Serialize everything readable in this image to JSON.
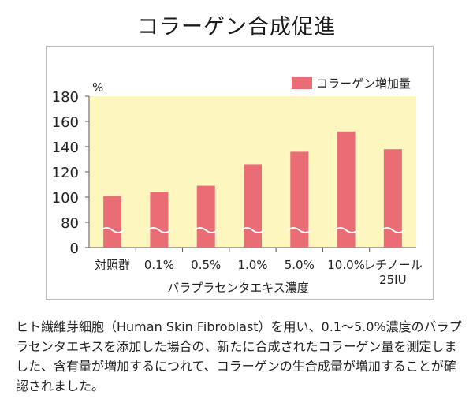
{
  "chart_data": {
    "type": "bar",
    "title": "コラーゲン合成促進",
    "ylabel": "%",
    "xlabel": "バラプラセンタエキス濃度",
    "categories": [
      "対照群",
      "0.1%",
      "0.5%",
      "1.0%",
      "5.0%",
      "10.0%",
      "レチノール\n25IU"
    ],
    "series": [
      {
        "name": "コラーゲン増加量",
        "values": [
          101,
          104,
          109,
          126,
          136,
          152,
          138
        ],
        "color": "#ea6c74"
      }
    ],
    "ylim": [
      0,
      180
    ],
    "yticks": [
      "0",
      "80",
      "100",
      "120",
      "140",
      "160",
      "180"
    ],
    "axis_break": true,
    "grid": false,
    "legend_position": "top-right",
    "plot_background": "#fdf7bf"
  },
  "description": "ヒト繊維芽細胞（Human Skin Fibroblast）を用い、0.1～5.0%濃度のバラプラセンタエキスを添加した場合の、新たに合成されたコラーゲン量を測定しました、含有量が増加するにつれて、コラーゲンの生合成量が増加することが確認されました。"
}
